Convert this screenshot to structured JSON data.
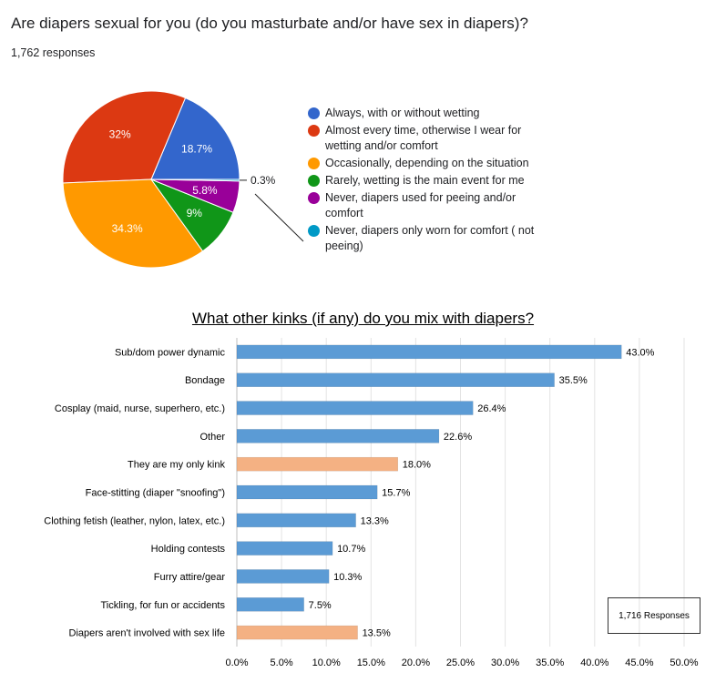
{
  "question": {
    "title": "Are diapers sexual for you (do you masturbate and/or have sex in diapers)?",
    "responses": "1,762 responses"
  },
  "legend": [
    {
      "label": "Always, with or without wetting",
      "color": "#3366cc"
    },
    {
      "label": "Almost every time, otherwise I wear for wetting and/or comfort",
      "color": "#dc3912"
    },
    {
      "label": "Occasionally, depending on the situation",
      "color": "#ff9900"
    },
    {
      "label": "Rarely, wetting is the main event for me",
      "color": "#109618"
    },
    {
      "label": "Never, diapers used for peeing and/or comfort",
      "color": "#990099"
    },
    {
      "label": "Never, diapers only worn for comfort ( not peeing)",
      "color": "#0099c6"
    }
  ],
  "bar_chart": {
    "title": "What other kinks (if any) do you mix with diapers?",
    "responses_box": "1,716 Responses"
  },
  "chart_data": [
    {
      "type": "pie",
      "title": "Are diapers sexual for you (do you masturbate and/or have sex in diapers)?",
      "categories": [
        "Always, with or without wetting",
        "Almost every time, otherwise I wear for wetting and/or comfort",
        "Occasionally, depending on the situation",
        "Rarely, wetting is the main event for me",
        "Never, diapers used for peeing and/or comfort",
        "Never, diapers only worn for comfort ( not peeing)"
      ],
      "values": [
        18.7,
        32,
        34.3,
        9,
        5.8,
        0.3
      ],
      "labels": [
        "18.7%",
        "32%",
        "34.3%",
        "9%",
        "5.8%",
        "0.3%"
      ],
      "colors": [
        "#3366cc",
        "#dc3912",
        "#ff9900",
        "#109618",
        "#990099",
        "#0099c6"
      ]
    },
    {
      "type": "bar",
      "orientation": "horizontal",
      "title": "What other kinks (if any) do you mix with diapers?",
      "categories": [
        "Sub/dom power dynamic",
        "Bondage",
        "Cosplay (maid, nurse, superhero, etc.)",
        "Other",
        "They are my only kink",
        "Face-stitting (diaper \"snoofing\")",
        "Clothing fetish (leather, nylon, latex, etc.)",
        "Holding contests",
        "Furry attire/gear",
        "Tickling, for fun or accidents",
        "Diapers aren't involved with  sex life"
      ],
      "values": [
        43.0,
        35.5,
        26.4,
        22.6,
        18.0,
        15.7,
        13.3,
        10.7,
        10.3,
        7.5,
        13.5
      ],
      "value_labels": [
        "43.0%",
        "35.5%",
        "26.4%",
        "22.6%",
        "18.0%",
        "15.7%",
        "13.3%",
        "10.7%",
        "10.3%",
        "7.5%",
        "13.5%"
      ],
      "bar_colors": [
        "#5b9bd5",
        "#5b9bd5",
        "#5b9bd5",
        "#5b9bd5",
        "#f4b183",
        "#5b9bd5",
        "#5b9bd5",
        "#5b9bd5",
        "#5b9bd5",
        "#5b9bd5",
        "#f4b183"
      ],
      "ticks": [
        "0.0%",
        "5.0%",
        "10.0%",
        "15.0%",
        "20.0%",
        "25.0%",
        "30.0%",
        "35.0%",
        "40.0%",
        "45.0%",
        "50.0%"
      ],
      "xlim": [
        0,
        50
      ],
      "grid": true
    }
  ]
}
